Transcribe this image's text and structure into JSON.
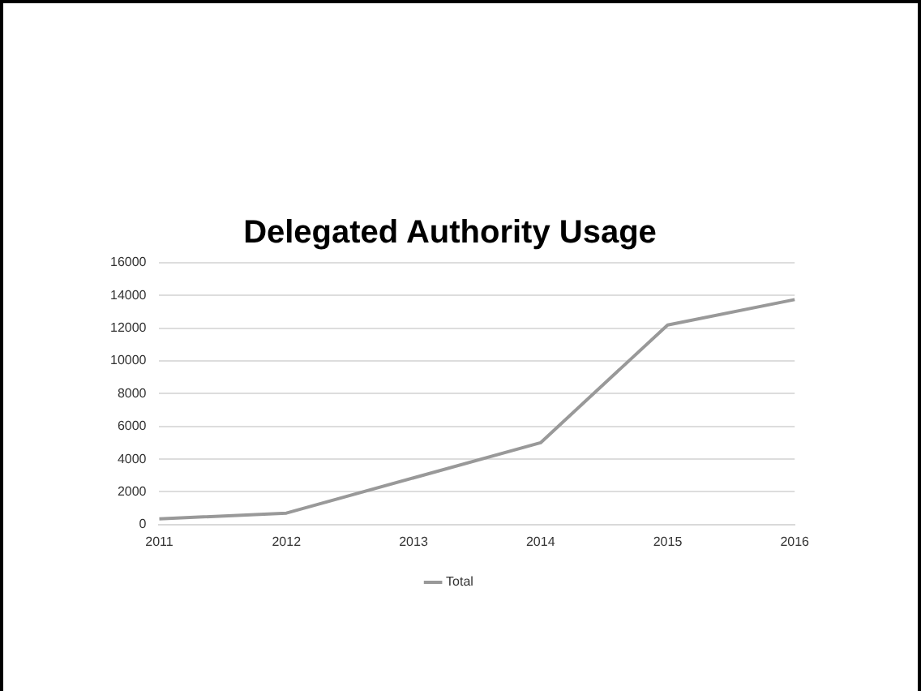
{
  "chart_data": {
    "type": "line",
    "title": "Delegated Authority Usage",
    "categories": [
      "2011",
      "2012",
      "2013",
      "2014",
      "2015",
      "2016"
    ],
    "series": [
      {
        "name": "Total",
        "color": "#999999",
        "values": [
          350,
          700,
          2850,
          5000,
          12200,
          13750
        ]
      }
    ],
    "ylim": [
      0,
      16000
    ],
    "yticks": [
      0,
      2000,
      4000,
      6000,
      8000,
      10000,
      12000,
      14000,
      16000
    ],
    "grid": "y",
    "legend": "bottom",
    "marker": "none"
  }
}
